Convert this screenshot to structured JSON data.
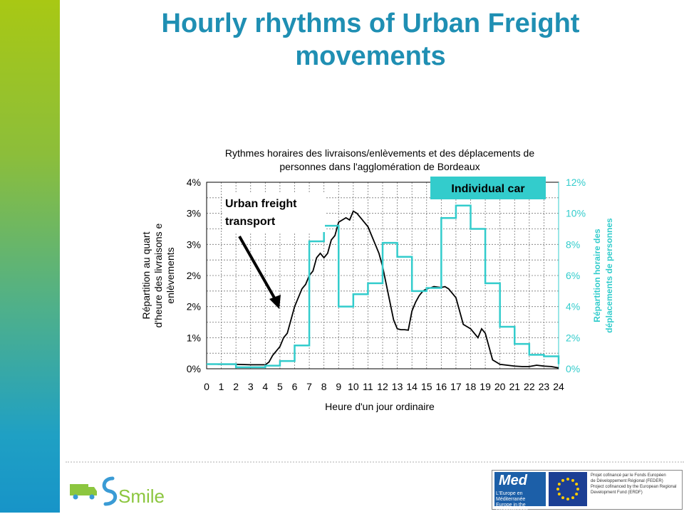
{
  "slide": {
    "title_line1": "Hourly rhythms of Urban Freight",
    "title_line2": "movements"
  },
  "chart_data": {
    "type": "line",
    "title_line1": "Rythmes horaires des livraisons/enlèvements et des déplacements de",
    "title_line2": "personnes dans l'agglomération de  Bordeaux",
    "xlabel": "Heure d'un jour ordinaire",
    "ylabel_left_lines": [
      "Répartition au quart",
      "d'heure des livraisons e",
      "enlèvements"
    ],
    "ylabel_right_lines": [
      "Répartition horaire des",
      "déplacements de personnes"
    ],
    "x_ticks": [
      "0",
      "1",
      "2",
      "3",
      "4",
      "5",
      "6",
      "7",
      "8",
      "9",
      "10",
      "11",
      "12",
      "13",
      "14",
      "15",
      "16",
      "17",
      "18",
      "19",
      "20",
      "21",
      "22",
      "23",
      "24"
    ],
    "y_left_ticks": [
      "0%",
      "1%",
      "2%",
      "2%",
      "3%",
      "3%",
      "4%"
    ],
    "y_left_values": [
      0,
      0.7,
      1.4,
      2.1,
      2.8,
      3.5,
      4.2
    ],
    "y_right_ticks": [
      "0%",
      "2%",
      "4%",
      "6%",
      "8%",
      "10%",
      "12%"
    ],
    "y_right_values": [
      0,
      2,
      4,
      6,
      8,
      10,
      12
    ],
    "xlim": [
      0,
      24
    ],
    "ylim_left": [
      0,
      4.2
    ],
    "ylim_right": [
      0,
      12
    ],
    "grid": true,
    "series": [
      {
        "name": "Urban freight transport",
        "axis": "left",
        "color": "#000000",
        "x": [
          0.75,
          1,
          2,
          3,
          3.5,
          4,
          4.25,
          4.5,
          4.75,
          5,
          5.25,
          5.5,
          5.75,
          6,
          6.25,
          6.5,
          6.75,
          7,
          7.25,
          7.5,
          7.75,
          8,
          8.25,
          8.5,
          8.75,
          9,
          9.25,
          9.5,
          9.75,
          10,
          10.25,
          10.5,
          10.75,
          11,
          11.25,
          11.5,
          11.75,
          12,
          12.25,
          12.5,
          12.75,
          13,
          13.25,
          13.5,
          13.75,
          14,
          14.25,
          14.5,
          14.75,
          15,
          15.25,
          15.5,
          15.75,
          16,
          16.25,
          16.5,
          16.75,
          17,
          17.25,
          17.5,
          17.75,
          18,
          18.25,
          18.5,
          18.75,
          19,
          19.25,
          19.5,
          19.75,
          20,
          20.5,
          21,
          21.5,
          22,
          22.5,
          23,
          23.5,
          24
        ],
        "y": [
          0.1,
          0.1,
          0.1,
          0.09,
          0.09,
          0.09,
          0.15,
          0.3,
          0.4,
          0.5,
          0.7,
          0.8,
          1.1,
          1.4,
          1.6,
          1.8,
          1.9,
          2.1,
          2.2,
          2.5,
          2.6,
          2.5,
          2.6,
          2.9,
          3.0,
          3.3,
          3.35,
          3.4,
          3.35,
          3.55,
          3.5,
          3.4,
          3.3,
          3.2,
          3.0,
          2.8,
          2.6,
          2.3,
          1.9,
          1.5,
          1.1,
          0.9,
          0.88,
          0.88,
          0.87,
          1.3,
          1.5,
          1.65,
          1.75,
          1.8,
          1.82,
          1.85,
          1.84,
          1.83,
          1.85,
          1.8,
          1.7,
          1.6,
          1.3,
          1.0,
          0.95,
          0.9,
          0.8,
          0.7,
          0.9,
          0.8,
          0.5,
          0.2,
          0.15,
          0.1,
          0.08,
          0.06,
          0.05,
          0.05,
          0.08,
          0.06,
          0.05,
          0.02
        ]
      },
      {
        "name": "Individual car",
        "axis": "right",
        "color": "#33cccc",
        "x": [
          0,
          1,
          2,
          3,
          4,
          5,
          6,
          7,
          8,
          9,
          10,
          11,
          12,
          13,
          14,
          15,
          16,
          17,
          18,
          19,
          20,
          21,
          22,
          23,
          24
        ],
        "y": [
          0.3,
          0.3,
          0.1,
          0.1,
          0.2,
          0.5,
          1.5,
          8.2,
          9.2,
          4.0,
          4.8,
          5.5,
          8.1,
          7.2,
          5.0,
          5.2,
          9.7,
          10.5,
          9.0,
          5.5,
          2.7,
          1.6,
          0.9,
          0.8,
          0.3
        ]
      }
    ],
    "annotations": [
      {
        "id": "freight",
        "lines": [
          "Urban freight",
          "transport"
        ]
      },
      {
        "id": "car",
        "text": "Individual car"
      }
    ]
  },
  "footer": {
    "smile_logo_text": "Smile",
    "med_logo_text": "Med",
    "med_sub_line1": "L'Europe en Méditerranée",
    "med_sub_line2": "Europe in the Mediterranean",
    "eu_text_lines": [
      "Projet cofinancé par le Fonds Européen",
      "de Développement Régional (FEDER)",
      "Project cofinanced by the European Regional",
      "Development Fund (ERDF)"
    ]
  }
}
